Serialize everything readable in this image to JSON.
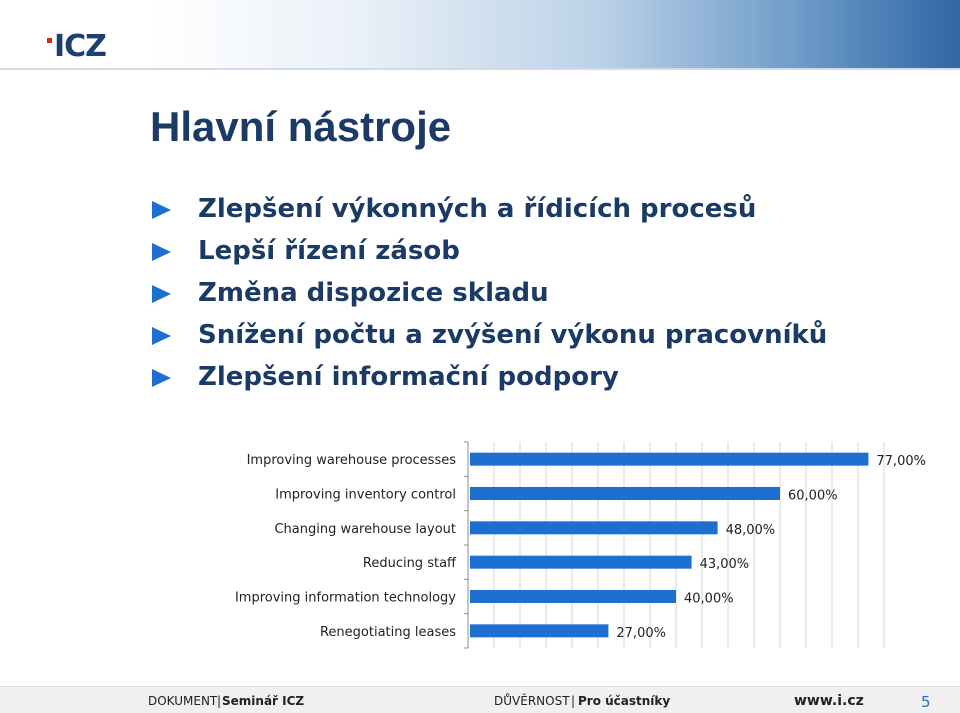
{
  "header": {
    "logo_text": "ICZ"
  },
  "title": "Hlavní nástroje",
  "bullets": [
    "Zlepšení výkonných a řídicích procesů",
    "Lepší řízení zásob",
    "Změna dispozice skladu",
    "Snížení počtu a zvýšení výkonu pracovníků",
    "Zlepšení informační podpory"
  ],
  "colors": {
    "bar": "#1f6fd1",
    "title": "#1b3a66",
    "bullet_marker": "#1f6fd1",
    "logo": "#1d3f73",
    "logo_accent": "#e2231a"
  },
  "chart_data": {
    "type": "bar",
    "orientation": "horizontal",
    "categories": [
      "Improving warehouse processes",
      "Improving inventory control",
      "Changing warehouse layout",
      "Reducing staff",
      "Improving information technology",
      "Renegotiating leases"
    ],
    "values": [
      77,
      60,
      48,
      43,
      40,
      27
    ],
    "value_labels": [
      "77,00%",
      "60,00%",
      "48,00%",
      "43,00%",
      "40,00%",
      "27,00%"
    ],
    "xlim": [
      0,
      80
    ],
    "grid": true,
    "title": "",
    "xlabel": "",
    "ylabel": ""
  },
  "footer": {
    "document": "DOKUMENT",
    "separator": "|",
    "seminar": "Seminář ICZ",
    "confidentiality": "DŮVĚRNOST",
    "audience": "Pro účastníky",
    "url": "www.i.cz",
    "page": "5"
  }
}
